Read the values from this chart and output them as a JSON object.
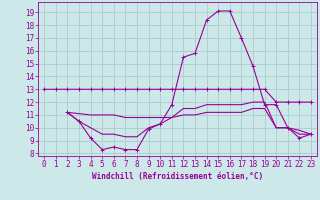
{
  "xlabel": "Windchill (Refroidissement éolien,°C)",
  "background_color": "#cce8e8",
  "grid_color": "#aacccc",
  "line_color": "#990099",
  "xlim": [
    -0.5,
    23.5
  ],
  "ylim": [
    7.8,
    19.8
  ],
  "xticks": [
    0,
    1,
    2,
    3,
    4,
    5,
    6,
    7,
    8,
    9,
    10,
    11,
    12,
    13,
    14,
    15,
    16,
    17,
    18,
    19,
    20,
    21,
    22,
    23
  ],
  "yticks": [
    8,
    9,
    10,
    11,
    12,
    13,
    14,
    15,
    16,
    17,
    18,
    19
  ],
  "line1_x": [
    0,
    1,
    2,
    3,
    4,
    5,
    6,
    7,
    8,
    9,
    10,
    11,
    12,
    13,
    14,
    15,
    16,
    17,
    18,
    19,
    20,
    21,
    22,
    23
  ],
  "line1_y": [
    13,
    13,
    13,
    13,
    13,
    13,
    13,
    13,
    13,
    13,
    13,
    13,
    13,
    13,
    13,
    13,
    13,
    13,
    13,
    13,
    12,
    12,
    12,
    12
  ],
  "line2_x": [
    2,
    3,
    4,
    5,
    6,
    7,
    8,
    9,
    10,
    11,
    12,
    13,
    14,
    15,
    16,
    17,
    18,
    19,
    20,
    21,
    22,
    23
  ],
  "line2_y": [
    11.2,
    10.5,
    9.2,
    8.3,
    8.5,
    8.3,
    8.3,
    9.9,
    10.3,
    11.8,
    15.5,
    15.8,
    18.4,
    19.1,
    19.1,
    17.0,
    14.8,
    11.8,
    11.8,
    10.0,
    9.2,
    9.5
  ],
  "line3_x": [
    2,
    3,
    4,
    5,
    6,
    7,
    8,
    9,
    10,
    11,
    12,
    13,
    14,
    15,
    16,
    17,
    18,
    19,
    20,
    21,
    22,
    23
  ],
  "line3_y": [
    11.2,
    11.1,
    11.0,
    11.0,
    11.0,
    10.8,
    10.8,
    10.8,
    10.8,
    10.8,
    11.5,
    11.5,
    11.8,
    11.8,
    11.8,
    11.8,
    12.0,
    12.0,
    10.0,
    10.0,
    9.8,
    9.5
  ],
  "line4_x": [
    2,
    3,
    4,
    5,
    6,
    7,
    8,
    9,
    10,
    11,
    12,
    13,
    14,
    15,
    16,
    17,
    18,
    19,
    20,
    21,
    22,
    23
  ],
  "line4_y": [
    11.2,
    10.5,
    10.0,
    9.5,
    9.5,
    9.3,
    9.3,
    10.0,
    10.3,
    10.8,
    11.0,
    11.0,
    11.2,
    11.2,
    11.2,
    11.2,
    11.5,
    11.5,
    10.0,
    10.0,
    9.5,
    9.5
  ],
  "tick_fontsize": 5.5,
  "xlabel_fontsize": 5.5
}
